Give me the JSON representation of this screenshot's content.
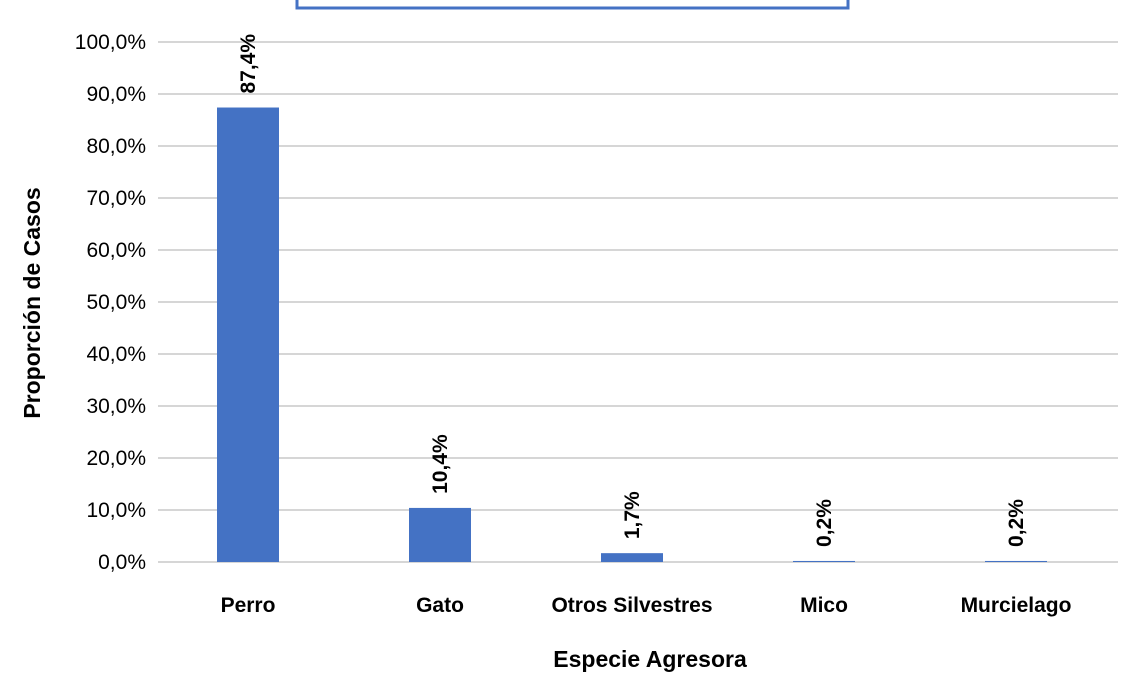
{
  "chart_data": {
    "type": "bar",
    "categories": [
      "Perro",
      "Gato",
      "Otros Silvestres",
      "Mico",
      "Murcielago"
    ],
    "values": [
      87.4,
      10.4,
      1.7,
      0.2,
      0.2
    ],
    "data_labels": [
      "87,4%",
      "10,4%",
      "1,7%",
      "0,2%",
      "0,2%"
    ],
    "xlabel": "Especie Agresora",
    "ylabel": "Proporción de Casos",
    "ylim": [
      0,
      100
    ],
    "yticks": [
      "0,0%",
      "10,0%",
      "20,0%",
      "30,0%",
      "40,0%",
      "50,0%",
      "60,0%",
      "70,0%",
      "80,0%",
      "90,0%",
      "100,0%"
    ],
    "grid": true,
    "legend": "none",
    "bar_color": "#4472c4",
    "title_box_color": "#4472c4"
  }
}
